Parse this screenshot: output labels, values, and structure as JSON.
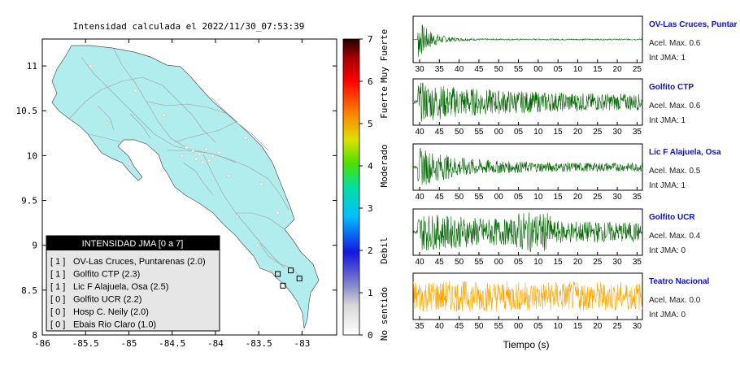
{
  "map": {
    "title": "Intensidad calculada el 2022/11/30_07:53:39",
    "x_ticks": [
      "-86",
      "-85.5",
      "-85",
      "-84.5",
      "-84",
      "-83.5",
      "-83"
    ],
    "y_ticks": [
      "11",
      "10.5",
      "10",
      "9.5",
      "9",
      "8.5",
      "8"
    ],
    "xlim": [
      -86,
      -82.6
    ],
    "ylim": [
      8,
      11.3
    ],
    "land_color": "#b2eded",
    "stations": [
      {
        "lon": -83.13,
        "lat": 8.72
      },
      {
        "lon": -83.22,
        "lat": 8.55
      },
      {
        "lon": -83.03,
        "lat": 8.63
      },
      {
        "lon": -83.28,
        "lat": 8.68
      }
    ],
    "legend": {
      "header": "INTENSIDAD JMA [0 a 7]",
      "items": [
        {
          "level": "[ 1 ]",
          "text": "OV-Las Cruces, Puntarenas (2.0)"
        },
        {
          "level": "[ 1 ]",
          "text": "Golfito CTP (2.3)"
        },
        {
          "level": "[ 1 ]",
          "text": "Lic F Alajuela, Osa (2.5)"
        },
        {
          "level": "[ 0 ]",
          "text": "Golfito UCR (2.2)"
        },
        {
          "level": "[ 0 ]",
          "text": "Hosp C. Neily (2.0)"
        },
        {
          "level": "[ 0 ]",
          "text": "Ebais Rio Claro (1.0)"
        }
      ]
    }
  },
  "colorbar": {
    "ticks": [
      "0",
      "1",
      "2",
      "3",
      "4",
      "5",
      "6",
      "7"
    ],
    "categories": [
      {
        "label": "No sentido",
        "center": 0.5
      },
      {
        "label": "Debil",
        "center": 2
      },
      {
        "label": "Moderado",
        "center": 4
      },
      {
        "label": "Fuerte",
        "center": 5.5
      },
      {
        "label": "Muy Fuerte",
        "center": 6.6
      }
    ]
  },
  "chart_data": {
    "type": "line",
    "xlabel": "Tiempo (s)",
    "series": [
      {
        "name": "OV-Las Cruces, Puntar",
        "accel_label": "Acel. Max. 0.6",
        "int_label": "Int JMA: 1",
        "color": "#006400",
        "x_ticks": [
          "30",
          "35",
          "40",
          "45",
          "50",
          "55",
          "00",
          "05",
          "10",
          "15",
          "20",
          "25"
        ],
        "envelope": {
          "baseline": 0.03,
          "onset": 0.02,
          "peak": 1.0,
          "decay": 0.06
        }
      },
      {
        "name": "Golfito CTP",
        "accel_label": "Acel. Max. 0.6",
        "int_label": "Int JMA: 1",
        "color": "#006400",
        "x_ticks": [
          "40",
          "45",
          "50",
          "55",
          "00",
          "05",
          "10",
          "15",
          "20",
          "25",
          "30",
          "35"
        ],
        "envelope": {
          "baseline": 0.35,
          "onset": 0.02,
          "peak": 0.95,
          "decay": 0.35
        }
      },
      {
        "name": "Lic F Alajuela, Osa",
        "accel_label": "Acel. Max. 0.5",
        "int_label": "Int JMA: 1",
        "color": "#006400",
        "x_ticks": [
          "40",
          "45",
          "50",
          "55",
          "00",
          "05",
          "10",
          "15",
          "20",
          "25",
          "30",
          "35"
        ],
        "envelope": {
          "baseline": 0.2,
          "onset": 0.02,
          "peak": 0.95,
          "decay": 0.18
        }
      },
      {
        "name": "Golfito UCR",
        "accel_label": "Acel. Max. 0.4",
        "int_label": "Int JMA: 0",
        "color": "#006400",
        "x_ticks": [
          "40",
          "45",
          "50",
          "55",
          "00",
          "05",
          "10",
          "15",
          "20",
          "25",
          "30",
          "35"
        ],
        "envelope": {
          "baseline": 0.4,
          "onset": 0.02,
          "peak": 0.9,
          "decay": 0.45
        }
      },
      {
        "name": "Teatro Nacional",
        "accel_label": "Acel. Max. 0.0",
        "int_label": "Int JMA: 0",
        "color": "#ffa500",
        "x_ticks": [
          "35",
          "40",
          "45",
          "50",
          "55",
          "00",
          "05",
          "10",
          "15",
          "20",
          "25",
          "30"
        ],
        "envelope": {
          "baseline": 0.55,
          "onset": 0.0,
          "peak": 0.75,
          "decay": 2.0
        }
      }
    ]
  }
}
